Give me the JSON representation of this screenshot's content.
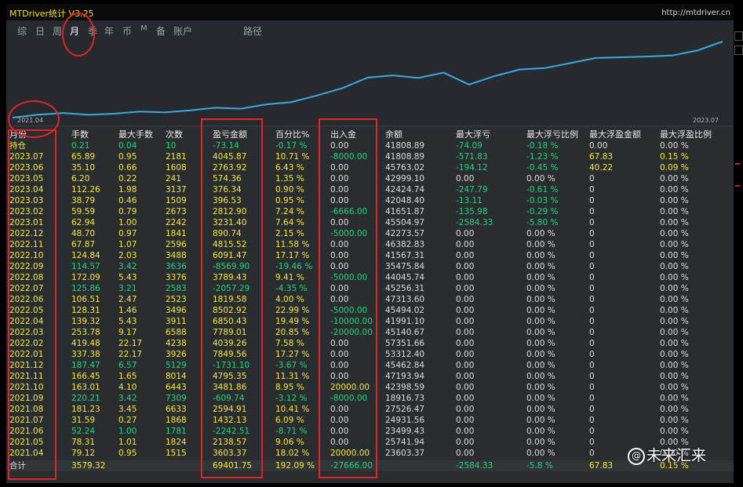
{
  "app": {
    "title": "MTDriver统计  V3.25",
    "url": "http://mtdriver.cn"
  },
  "tabs": [
    {
      "label": "综",
      "active": false
    },
    {
      "label": "日",
      "active": false
    },
    {
      "label": "周",
      "active": false
    },
    {
      "label": "月",
      "active": true
    },
    {
      "label": "季",
      "active": false
    },
    {
      "label": "年",
      "active": false
    },
    {
      "label": "币",
      "active": false
    },
    {
      "label": "M",
      "active": false
    },
    {
      "label": "备",
      "active": false
    },
    {
      "label": "账户",
      "active": false
    },
    {
      "label": "路径",
      "active": false
    }
  ],
  "chart": {
    "start_label": "2021.04",
    "end_label": "2023.07",
    "line_color": "#3aa9e0"
  },
  "table": {
    "headers": [
      "月份",
      "手数",
      "最大手数",
      "次数",
      "盈亏金额",
      "百分比%",
      "出入金",
      "余额",
      "最大浮亏",
      "最大浮亏比例",
      "最大浮盈金额",
      "最大浮盈比例"
    ],
    "rows": [
      {
        "c": [
          "持仓",
          "0.21",
          "0.04",
          "10",
          "-73.14",
          "-0.17 %",
          "0.00",
          "41808.89",
          "-74.09",
          "-0.18 %",
          "0.00",
          "0.00 %"
        ],
        "colors": [
          "yellow",
          "green",
          "green",
          "green",
          "green",
          "green",
          "white",
          "white",
          "green",
          "green",
          "white",
          "white"
        ]
      },
      {
        "c": [
          "2023.07",
          "65.89",
          "0.95",
          "2181",
          "4045.87",
          "10.71 %",
          "-8000.00",
          "41808.89",
          "-571.83",
          "-1.23 %",
          "67.83",
          "0.15 %"
        ],
        "colors": [
          "yellow",
          "yellow",
          "yellow",
          "yellow",
          "yellow",
          "yellow",
          "green",
          "white",
          "green",
          "green",
          "yellow",
          "yellow"
        ]
      },
      {
        "c": [
          "2023.06",
          "35.10",
          "0.66",
          "1608",
          "2763.92",
          "6.43 %",
          "0.00",
          "45763.02",
          "-194.12",
          "-0.45 %",
          "40.22",
          "0.09 %"
        ],
        "colors": [
          "yellow",
          "yellow",
          "yellow",
          "yellow",
          "yellow",
          "yellow",
          "white",
          "white",
          "green",
          "green",
          "yellow",
          "yellow"
        ]
      },
      {
        "c": [
          "2023.05",
          "6.20",
          "0.22",
          "241",
          "574.36",
          "1.35 %",
          "0.00",
          "42999.10",
          "0.00",
          "0.00 %",
          "0",
          "0.00 %"
        ],
        "colors": [
          "yellow",
          "yellow",
          "yellow",
          "yellow",
          "yellow",
          "yellow",
          "white",
          "white",
          "white",
          "white",
          "white",
          "white"
        ]
      },
      {
        "c": [
          "2023.04",
          "112.26",
          "1.98",
          "3137",
          "376.34",
          "0.90 %",
          "0.00",
          "42424.74",
          "-247.79",
          "-0.61 %",
          "0",
          "0.00 %"
        ],
        "colors": [
          "yellow",
          "yellow",
          "yellow",
          "yellow",
          "yellow",
          "yellow",
          "white",
          "white",
          "green",
          "green",
          "white",
          "white"
        ]
      },
      {
        "c": [
          "2023.03",
          "38.79",
          "0.46",
          "1509",
          "396.53",
          "0.95 %",
          "0.00",
          "42048.40",
          "-13.11",
          "-0.03 %",
          "0",
          "0.00 %"
        ],
        "colors": [
          "yellow",
          "yellow",
          "yellow",
          "yellow",
          "yellow",
          "yellow",
          "white",
          "white",
          "green",
          "green",
          "white",
          "white"
        ]
      },
      {
        "c": [
          "2023.02",
          "59.59",
          "0.79",
          "2673",
          "2812.90",
          "7.24 %",
          "-6666.00",
          "41651.87",
          "-135.98",
          "-0.29 %",
          "0",
          "0.00 %"
        ],
        "colors": [
          "yellow",
          "yellow",
          "yellow",
          "yellow",
          "yellow",
          "yellow",
          "green",
          "white",
          "green",
          "green",
          "white",
          "white"
        ]
      },
      {
        "c": [
          "2023.01",
          "62.94",
          "1.00",
          "2242",
          "3231.40",
          "7.64 %",
          "0.00",
          "45504.97",
          "-2584.33",
          "-5.80 %",
          "0",
          "0.00 %"
        ],
        "colors": [
          "yellow",
          "yellow",
          "yellow",
          "yellow",
          "yellow",
          "yellow",
          "white",
          "white",
          "green",
          "green",
          "white",
          "white"
        ]
      },
      {
        "c": [
          "2022.12",
          "48.70",
          "0.97",
          "1841",
          "890.74",
          "2.15 %",
          "-5000.00",
          "42273.57",
          "0.00",
          "0.00 %",
          "0",
          "0.00 %"
        ],
        "colors": [
          "yellow",
          "yellow",
          "yellow",
          "yellow",
          "yellow",
          "yellow",
          "green",
          "white",
          "white",
          "white",
          "white",
          "white"
        ]
      },
      {
        "c": [
          "2022.11",
          "67.87",
          "1.07",
          "2596",
          "4815.52",
          "11.58 %",
          "0.00",
          "46382.83",
          "0.00",
          "0.00 %",
          "0",
          "0.00 %"
        ],
        "colors": [
          "yellow",
          "yellow",
          "yellow",
          "yellow",
          "yellow",
          "yellow",
          "white",
          "white",
          "white",
          "white",
          "white",
          "white"
        ]
      },
      {
        "c": [
          "2022.10",
          "124.84",
          "2.03",
          "3488",
          "6091.47",
          "17.17 %",
          "0.00",
          "41567.31",
          "0.00",
          "0.00 %",
          "0",
          "0.00 %"
        ],
        "colors": [
          "yellow",
          "yellow",
          "yellow",
          "yellow",
          "yellow",
          "yellow",
          "white",
          "white",
          "white",
          "white",
          "white",
          "white"
        ]
      },
      {
        "c": [
          "2022.09",
          "114.57",
          "3.42",
          "3636",
          "-8569.90",
          "-19.46 %",
          "0.00",
          "35475.84",
          "0.00",
          "0.00 %",
          "0",
          "0.00 %"
        ],
        "colors": [
          "yellow",
          "green",
          "green",
          "green",
          "green",
          "green",
          "white",
          "white",
          "white",
          "white",
          "white",
          "white"
        ]
      },
      {
        "c": [
          "2022.08",
          "172.09",
          "5.43",
          "3376",
          "3789.43",
          "9.41 %",
          "-5000.00",
          "44045.74",
          "0.00",
          "0.00 %",
          "0",
          "0.00 %"
        ],
        "colors": [
          "yellow",
          "yellow",
          "yellow",
          "yellow",
          "yellow",
          "yellow",
          "green",
          "white",
          "white",
          "white",
          "white",
          "white"
        ]
      },
      {
        "c": [
          "2022.07",
          "125.86",
          "3.21",
          "2583",
          "-2057.29",
          "-4.35 %",
          "0.00",
          "45256.31",
          "0.00",
          "0.00 %",
          "0",
          "0.00 %"
        ],
        "colors": [
          "yellow",
          "green",
          "green",
          "green",
          "green",
          "green",
          "white",
          "white",
          "white",
          "white",
          "white",
          "white"
        ]
      },
      {
        "c": [
          "2022.06",
          "106.51",
          "2.47",
          "2523",
          "1819.58",
          "4.00 %",
          "0.00",
          "47313.60",
          "0.00",
          "0.00 %",
          "0",
          "0.00 %"
        ],
        "colors": [
          "yellow",
          "yellow",
          "yellow",
          "yellow",
          "yellow",
          "yellow",
          "white",
          "white",
          "white",
          "white",
          "white",
          "white"
        ]
      },
      {
        "c": [
          "2022.05",
          "128.31",
          "1.46",
          "3496",
          "8502.92",
          "22.99 %",
          "-5000.00",
          "45494.02",
          "0.00",
          "0.00 %",
          "0",
          "0.00 %"
        ],
        "colors": [
          "yellow",
          "yellow",
          "yellow",
          "yellow",
          "yellow",
          "yellow",
          "green",
          "white",
          "white",
          "white",
          "white",
          "white"
        ]
      },
      {
        "c": [
          "2022.04",
          "139.32",
          "5.43",
          "3911",
          "6850.43",
          "19.49 %",
          "-10000.00",
          "41991.10",
          "0.00",
          "0.00 %",
          "0",
          "0.00 %"
        ],
        "colors": [
          "yellow",
          "yellow",
          "yellow",
          "yellow",
          "yellow",
          "yellow",
          "green",
          "white",
          "white",
          "white",
          "white",
          "white"
        ]
      },
      {
        "c": [
          "2022.03",
          "253.78",
          "9.17",
          "6588",
          "7789.01",
          "20.85 %",
          "-20000.00",
          "45140.67",
          "0.00",
          "0.00 %",
          "0",
          "0.00 %"
        ],
        "colors": [
          "yellow",
          "yellow",
          "yellow",
          "yellow",
          "yellow",
          "yellow",
          "green",
          "white",
          "white",
          "white",
          "white",
          "white"
        ]
      },
      {
        "c": [
          "2022.02",
          "419.48",
          "22.17",
          "4238",
          "4039.26",
          "7.58 %",
          "0.00",
          "57351.66",
          "0.00",
          "0.00 %",
          "0",
          "0.00 %"
        ],
        "colors": [
          "yellow",
          "yellow",
          "yellow",
          "yellow",
          "yellow",
          "yellow",
          "white",
          "white",
          "white",
          "white",
          "white",
          "white"
        ]
      },
      {
        "c": [
          "2022.01",
          "337.38",
          "22.17",
          "3926",
          "7849.56",
          "17.27 %",
          "0.00",
          "53312.40",
          "0.00",
          "0.00 %",
          "0",
          "0.00 %"
        ],
        "colors": [
          "yellow",
          "yellow",
          "yellow",
          "yellow",
          "yellow",
          "yellow",
          "white",
          "white",
          "white",
          "white",
          "white",
          "white"
        ]
      },
      {
        "c": [
          "2021.12",
          "187.47",
          "6.57",
          "5129",
          "-1731.10",
          "-3.67 %",
          "0.00",
          "45462.84",
          "0.00",
          "0.00 %",
          "0",
          "0.00 %"
        ],
        "colors": [
          "yellow",
          "green",
          "green",
          "green",
          "green",
          "green",
          "white",
          "white",
          "white",
          "white",
          "white",
          "white"
        ]
      },
      {
        "c": [
          "2021.11",
          "166.45",
          "1.65",
          "8014",
          "4795.35",
          "11.31 %",
          "0.00",
          "47193.94",
          "0.00",
          "0.00 %",
          "0",
          "0.00 %"
        ],
        "colors": [
          "yellow",
          "yellow",
          "yellow",
          "yellow",
          "yellow",
          "yellow",
          "white",
          "white",
          "white",
          "white",
          "white",
          "white"
        ]
      },
      {
        "c": [
          "2021.10",
          "163.01",
          "4.10",
          "6443",
          "3481.86",
          "8.95 %",
          "20000.00",
          "42398.59",
          "0.00",
          "0.00 %",
          "0",
          "0.00 %"
        ],
        "colors": [
          "yellow",
          "yellow",
          "yellow",
          "yellow",
          "yellow",
          "yellow",
          "yellow",
          "white",
          "white",
          "white",
          "white",
          "white"
        ]
      },
      {
        "c": [
          "2021.09",
          "220.21",
          "3.42",
          "7309",
          "-609.74",
          "-3.12 %",
          "-8000.00",
          "18916.73",
          "0.00",
          "0.00 %",
          "0",
          "0.00 %"
        ],
        "colors": [
          "yellow",
          "green",
          "green",
          "green",
          "green",
          "green",
          "green",
          "white",
          "white",
          "white",
          "white",
          "white"
        ]
      },
      {
        "c": [
          "2021.08",
          "181.23",
          "3.45",
          "6633",
          "2594.91",
          "10.41 %",
          "0.00",
          "27526.47",
          "0.00",
          "0.00 %",
          "0",
          "0.00 %"
        ],
        "colors": [
          "yellow",
          "yellow",
          "yellow",
          "yellow",
          "yellow",
          "yellow",
          "white",
          "white",
          "white",
          "white",
          "white",
          "white"
        ]
      },
      {
        "c": [
          "2021.07",
          "31.59",
          "0.27",
          "1868",
          "1432.13",
          "6.09 %",
          "0.00",
          "24931.56",
          "0.00",
          "0.00 %",
          "0",
          "0.00 %"
        ],
        "colors": [
          "yellow",
          "yellow",
          "yellow",
          "yellow",
          "yellow",
          "yellow",
          "white",
          "white",
          "white",
          "white",
          "white",
          "white"
        ]
      },
      {
        "c": [
          "2021.06",
          "52.24",
          "1.00",
          "1781",
          "-2242.51",
          "-8.71 %",
          "0.00",
          "23499.43",
          "0.00",
          "0.00 %",
          "0",
          "0.00 %"
        ],
        "colors": [
          "yellow",
          "green",
          "green",
          "green",
          "green",
          "green",
          "white",
          "white",
          "white",
          "white",
          "white",
          "white"
        ]
      },
      {
        "c": [
          "2021.05",
          "78.31",
          "1.01",
          "1824",
          "2138.57",
          "9.06 %",
          "0.00",
          "25741.94",
          "0.00",
          "0.00 %",
          "0",
          "0.00 %"
        ],
        "colors": [
          "yellow",
          "yellow",
          "yellow",
          "yellow",
          "yellow",
          "yellow",
          "white",
          "white",
          "white",
          "white",
          "white",
          "white"
        ]
      },
      {
        "c": [
          "2021.04",
          "79.12",
          "0.95",
          "1515",
          "3603.37",
          "18.02 %",
          "20000.00",
          "23603.37",
          "0.00",
          "0.00 %",
          "0",
          "0.00 %"
        ],
        "colors": [
          "yellow",
          "yellow",
          "yellow",
          "yellow",
          "yellow",
          "yellow",
          "yellow",
          "white",
          "white",
          "white",
          "white",
          "white"
        ]
      }
    ],
    "total": {
      "c": [
        "合计",
        "3579.32",
        "",
        "",
        "69401.75",
        "192.09 %",
        "-27666.00",
        "",
        "-2584.33",
        "-5.8 %",
        "67.83",
        "0.15 %"
      ],
      "colors": [
        "white",
        "yellow",
        "white",
        "white",
        "yellow",
        "yellow",
        "green",
        "white",
        "green",
        "green",
        "yellow",
        "yellow"
      ]
    }
  },
  "colors": {
    "yellow": "#f4e83a",
    "green": "#22d47a",
    "white": "#dcdcdc",
    "annotation_red": "#e0242a"
  },
  "watermark": {
    "icon": "weibo-at-icon",
    "icon_glyph": "@",
    "text": "未来汇来"
  }
}
